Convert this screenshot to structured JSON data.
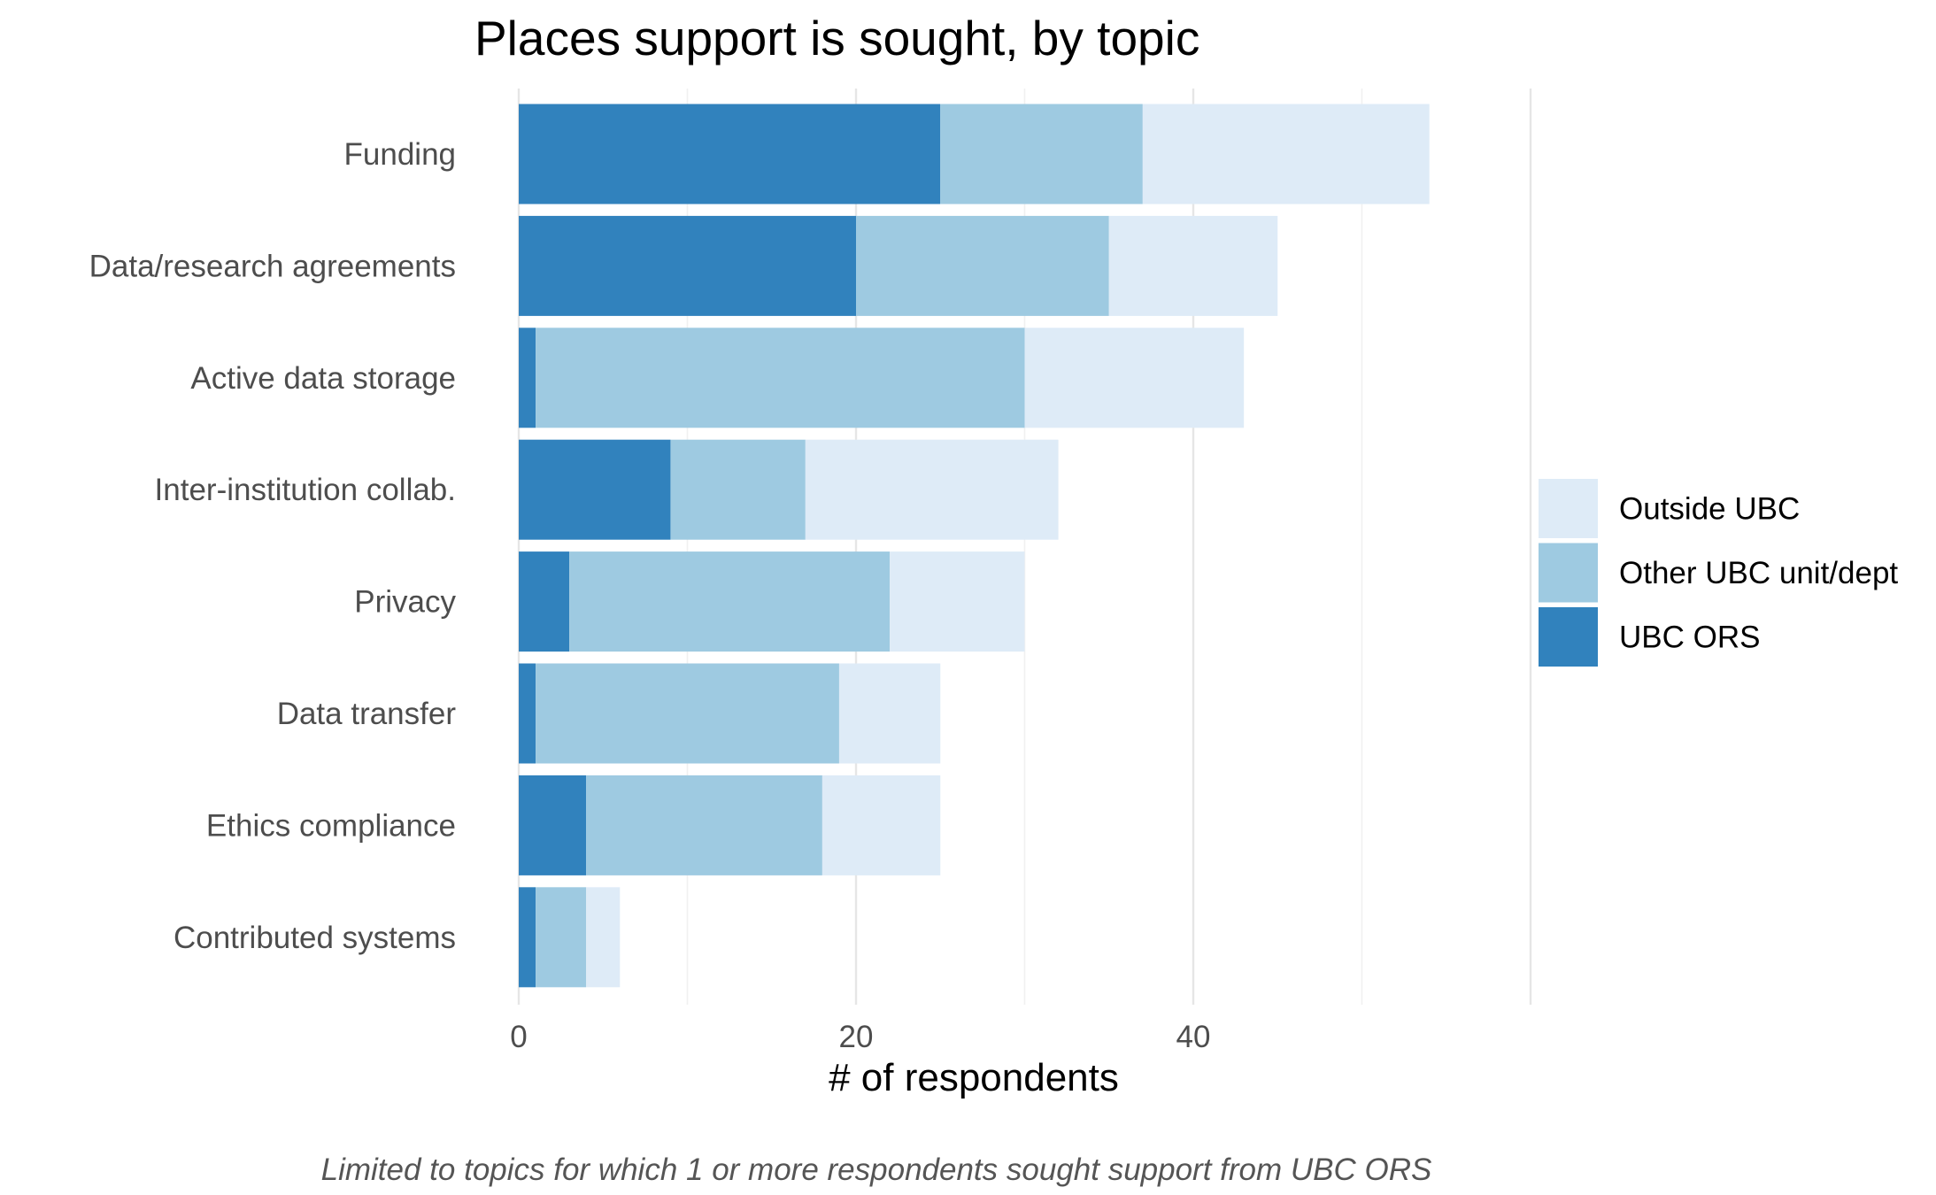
{
  "chart_data": {
    "type": "bar",
    "orientation": "horizontal",
    "stacked": true,
    "title": "Places support is sought, by topic",
    "xlabel": "# of respondents",
    "ylabel": "",
    "caption": "Limited to topics for which 1 or more respondents sought support from UBC ORS",
    "categories": [
      "Funding",
      "Data/research agreements",
      "Active data storage",
      "Inter-institution collab.",
      "Privacy",
      "Data transfer",
      "Ethics compliance",
      "Contributed systems"
    ],
    "series": [
      {
        "name": "UBC ORS",
        "color": "#3182bd",
        "values": [
          25,
          20,
          1,
          9,
          3,
          1,
          4,
          1
        ]
      },
      {
        "name": "Other UBC unit/dept",
        "color": "#9ecae1",
        "values": [
          12,
          15,
          29,
          8,
          19,
          18,
          14,
          3
        ]
      },
      {
        "name": "Outside UBC",
        "color": "#deebf7",
        "values": [
          17,
          10,
          13,
          15,
          8,
          6,
          7,
          2
        ]
      }
    ],
    "legend_order": [
      "Outside UBC",
      "Other UBC unit/dept",
      "UBC ORS"
    ],
    "legend_position": "right",
    "xlim": [
      0,
      60
    ],
    "xticks": [
      0,
      20,
      40
    ],
    "grid": true
  }
}
